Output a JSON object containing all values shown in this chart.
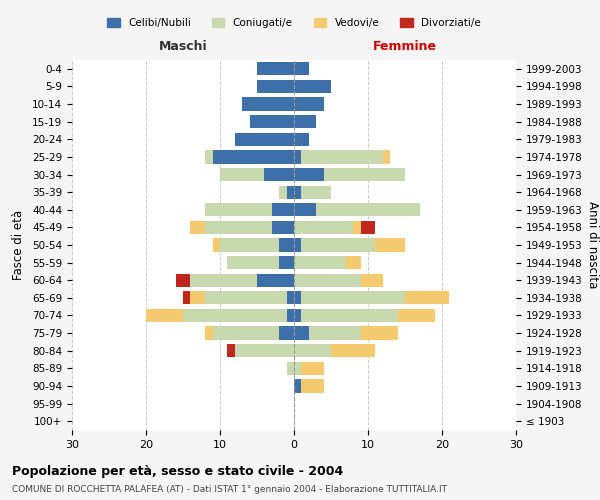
{
  "age_groups": [
    "100+",
    "95-99",
    "90-94",
    "85-89",
    "80-84",
    "75-79",
    "70-74",
    "65-69",
    "60-64",
    "55-59",
    "50-54",
    "45-49",
    "40-44",
    "35-39",
    "30-34",
    "25-29",
    "20-24",
    "15-19",
    "10-14",
    "5-9",
    "0-4"
  ],
  "birth_years": [
    "≤ 1903",
    "1904-1908",
    "1909-1913",
    "1914-1918",
    "1919-1923",
    "1924-1928",
    "1929-1933",
    "1934-1938",
    "1939-1943",
    "1944-1948",
    "1949-1953",
    "1954-1958",
    "1959-1963",
    "1964-1968",
    "1969-1973",
    "1974-1978",
    "1979-1983",
    "1984-1988",
    "1989-1993",
    "1994-1998",
    "1999-2003"
  ],
  "maschi": {
    "celibi": [
      0,
      0,
      0,
      0,
      0,
      2,
      1,
      1,
      5,
      2,
      2,
      3,
      3,
      1,
      4,
      11,
      8,
      6,
      7,
      5,
      5
    ],
    "coniugati": [
      0,
      0,
      0,
      1,
      8,
      9,
      14,
      11,
      9,
      7,
      8,
      9,
      9,
      1,
      6,
      1,
      0,
      0,
      0,
      0,
      0
    ],
    "vedovi": [
      0,
      0,
      0,
      0,
      0,
      1,
      5,
      2,
      0,
      0,
      1,
      2,
      0,
      0,
      0,
      0,
      0,
      0,
      0,
      0,
      0
    ],
    "divorziati": [
      0,
      0,
      0,
      0,
      1,
      0,
      0,
      1,
      2,
      0,
      0,
      0,
      0,
      0,
      0,
      0,
      0,
      0,
      0,
      0,
      0
    ]
  },
  "femmine": {
    "nubili": [
      0,
      0,
      1,
      0,
      0,
      2,
      1,
      1,
      0,
      0,
      1,
      0,
      3,
      1,
      4,
      1,
      2,
      3,
      4,
      5,
      2
    ],
    "coniugate": [
      0,
      0,
      0,
      1,
      5,
      7,
      13,
      14,
      9,
      7,
      10,
      8,
      14,
      4,
      11,
      11,
      0,
      0,
      0,
      0,
      0
    ],
    "vedove": [
      0,
      0,
      3,
      3,
      6,
      5,
      5,
      6,
      3,
      2,
      4,
      1,
      0,
      0,
      0,
      1,
      0,
      0,
      0,
      0,
      0
    ],
    "divorziate": [
      0,
      0,
      0,
      0,
      0,
      0,
      0,
      0,
      0,
      0,
      0,
      2,
      0,
      0,
      0,
      0,
      0,
      0,
      0,
      0,
      0
    ]
  },
  "colors": {
    "celibi": "#3d6fa8",
    "coniugati": "#c8d9b0",
    "vedovi": "#f5c96e",
    "divorziati": "#c0281e"
  },
  "xlim": 30,
  "title": "Popolazione per età, sesso e stato civile - 2004",
  "subtitle": "COMUNE DI ROCCHETTA PALAFEA (AT) - Dati ISTAT 1° gennaio 2004 - Elaborazione TUTTITALIA.IT",
  "ylabel_left": "Fasce di età",
  "ylabel_right": "Anni di nascita",
  "xlabel_left": "Maschi",
  "xlabel_right": "Femmine",
  "legend_labels": [
    "Celibi/Nubili",
    "Coniugati/e",
    "Vedovi/e",
    "Divorziati/e"
  ],
  "background_color": "#f5f5f5",
  "plot_bg_color": "#ffffff"
}
